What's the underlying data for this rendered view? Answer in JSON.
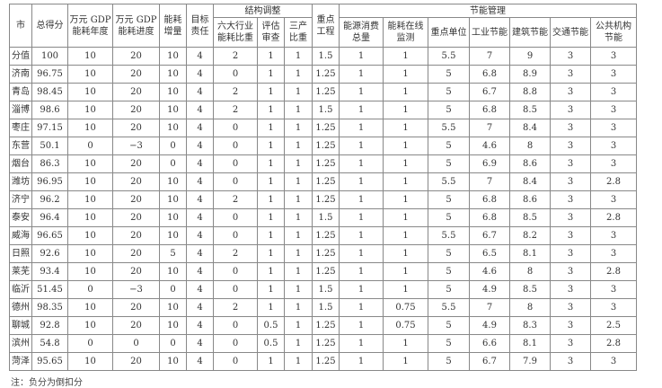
{
  "header": {
    "city": "市",
    "total": "总得分",
    "gdp_annual": "万元 GDP 能耗年度",
    "gdp_progress": "万元 GDP 能耗进度",
    "energy_increase": "能耗 增量",
    "target_resp": "目标 责任",
    "structure": "结构调整",
    "six_industries": "六大行业 能耗比重",
    "assessment": "评估 审查",
    "tertiary": "三产 比重",
    "key_projects": "重点 工程",
    "management": "节能管理",
    "total_consumption": "能源消费 总量",
    "online_monitoring": "能耗在线 监测",
    "key_units": "重点单位",
    "industrial": "工业节能",
    "building": "建筑节能",
    "transport": "交通节能",
    "public_inst": "公共机构 节能"
  },
  "rows": [
    [
      "分值",
      "100",
      "10",
      "20",
      "10",
      "4",
      "2",
      "1",
      "1",
      "1.5",
      "1",
      "1",
      "5.5",
      "7",
      "9",
      "3",
      "3"
    ],
    [
      "济南",
      "96.75",
      "10",
      "20",
      "10",
      "4",
      "0",
      "1",
      "1",
      "1.25",
      "1",
      "1",
      "5",
      "6.8",
      "8.9",
      "3",
      "3"
    ],
    [
      "青岛",
      "98.45",
      "10",
      "20",
      "10",
      "4",
      "2",
      "1",
      "1",
      "1.25",
      "1",
      "1",
      "5",
      "6.7",
      "8.8",
      "3",
      "3"
    ],
    [
      "淄博",
      "98.6",
      "10",
      "20",
      "10",
      "4",
      "2",
      "1",
      "1",
      "1.5",
      "1",
      "1",
      "5",
      "6.8",
      "8.5",
      "3",
      "3"
    ],
    [
      "枣庄",
      "97.15",
      "10",
      "20",
      "10",
      "4",
      "0",
      "1",
      "1",
      "1.25",
      "1",
      "1",
      "5.5",
      "7",
      "8.4",
      "3",
      "3"
    ],
    [
      "东营",
      "50.1",
      "0",
      "−3",
      "0",
      "4",
      "0",
      "1",
      "1",
      "1.25",
      "1",
      "1",
      "5",
      "4.6",
      "8",
      "3",
      "3"
    ],
    [
      "烟台",
      "86.3",
      "10",
      "20",
      "0",
      "4",
      "0",
      "1",
      "1",
      "1.25",
      "1",
      "1",
      "5",
      "6.9",
      "8.6",
      "3",
      "3"
    ],
    [
      "潍坊",
      "96.95",
      "10",
      "20",
      "10",
      "4",
      "0",
      "1",
      "1",
      "1.25",
      "1",
      "1",
      "5.5",
      "7",
      "8.4",
      "3",
      "2.8"
    ],
    [
      "济宁",
      "96.2",
      "10",
      "20",
      "10",
      "4",
      "2",
      "1",
      "1",
      "1.25",
      "1",
      "1",
      "5",
      "6.8",
      "8.6",
      "3",
      "3"
    ],
    [
      "泰安",
      "96.4",
      "10",
      "20",
      "10",
      "4",
      "0",
      "1",
      "1",
      "1.5",
      "1",
      "1",
      "5",
      "6.8",
      "8.5",
      "3",
      "2.8"
    ],
    [
      "威海",
      "96.65",
      "10",
      "20",
      "10",
      "4",
      "0",
      "1",
      "1",
      "1.25",
      "1",
      "1",
      "5.5",
      "6.7",
      "8.2",
      "3",
      "3"
    ],
    [
      "日照",
      "92.6",
      "10",
      "20",
      "5",
      "4",
      "2",
      "1",
      "1",
      "1.25",
      "1",
      "1",
      "5",
      "6.5",
      "8.1",
      "3",
      "3"
    ],
    [
      "莱芜",
      "93.4",
      "10",
      "20",
      "10",
      "4",
      "0",
      "1",
      "1",
      "1.25",
      "1",
      "1",
      "5",
      "4.6",
      "8",
      "3",
      "2.8"
    ],
    [
      "临沂",
      "51.45",
      "0",
      "−3",
      "0",
      "4",
      "0",
      "1",
      "1",
      "1.5",
      "1",
      "1",
      "5",
      "4.9",
      "8.5",
      "3",
      "3"
    ],
    [
      "德州",
      "98.35",
      "10",
      "20",
      "10",
      "4",
      "2",
      "1",
      "1",
      "1.5",
      "1",
      "0.75",
      "5.5",
      "7",
      "8",
      "3",
      "3"
    ],
    [
      "聊城",
      "92.8",
      "10",
      "20",
      "10",
      "4",
      "0",
      "0.5",
      "1",
      "1.25",
      "1",
      "0.75",
      "5",
      "4.9",
      "8.3",
      "3",
      "2.5"
    ],
    [
      "滨州",
      "54.8",
      "0",
      "0",
      "0",
      "4",
      "0",
      "0.5",
      "1",
      "1.25",
      "1",
      "1",
      "5",
      "6.6",
      "8.1",
      "3",
      "2.8"
    ],
    [
      "菏泽",
      "95.65",
      "10",
      "20",
      "10",
      "4",
      "0",
      "1",
      "1",
      "1.25",
      "1",
      "1",
      "5",
      "6.7",
      "7.9",
      "3",
      "3"
    ]
  ],
  "note": "注：负分为倒扣分"
}
